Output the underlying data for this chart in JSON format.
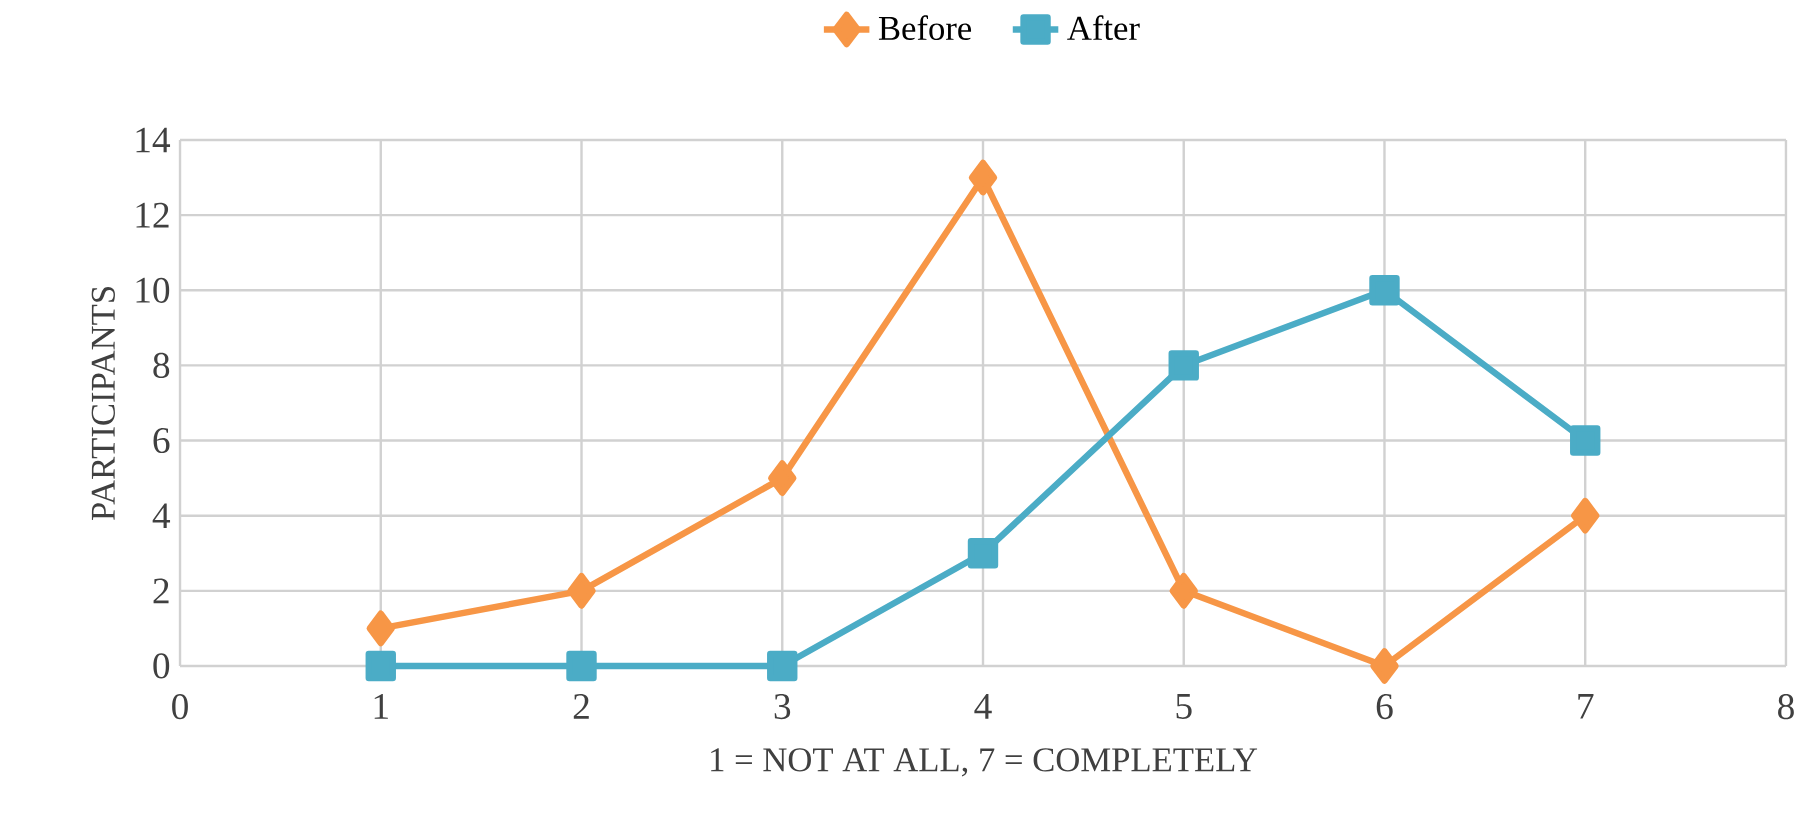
{
  "chart_data": {
    "type": "line",
    "xlabel": "1 = NOT AT ALL, 7 = COMPLETELY",
    "ylabel": "PARTICIPANTS",
    "x": [
      1,
      2,
      3,
      4,
      5,
      6,
      7
    ],
    "series": [
      {
        "name": "Before",
        "color": "#f79646",
        "marker": "diamond",
        "values": [
          1,
          2,
          5,
          13,
          2,
          0,
          4
        ]
      },
      {
        "name": "After",
        "color": "#4bacc6",
        "marker": "square",
        "values": [
          0,
          0,
          0,
          3,
          8,
          10,
          6
        ]
      }
    ],
    "xlim": [
      0,
      8
    ],
    "xticks": [
      0,
      1,
      2,
      3,
      4,
      5,
      6,
      7,
      8
    ],
    "ylim": [
      0,
      14
    ],
    "yticks": [
      0,
      2,
      4,
      6,
      8,
      10,
      12,
      14
    ],
    "grid": true,
    "legend": "top",
    "line_style": "solid"
  }
}
